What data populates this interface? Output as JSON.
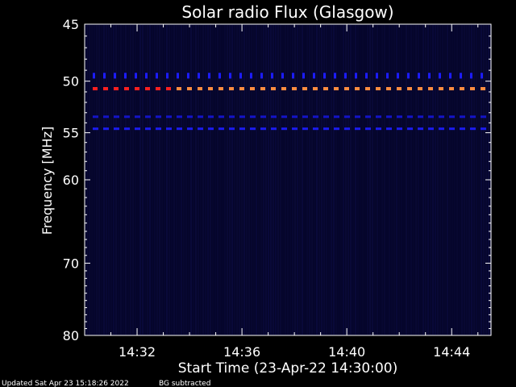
{
  "chart_data": {
    "type": "heatmap",
    "title": "Solar radio Flux (Glasgow)",
    "xlabel": "Start Time (23-Apr-22 14:30:00)",
    "ylabel": "Frequency [MHz]",
    "x_range_minutes": [
      0,
      15.5
    ],
    "x_ticks": [
      {
        "minute": 2,
        "label": "14:32"
      },
      {
        "minute": 6,
        "label": "14:36"
      },
      {
        "minute": 10,
        "label": "14:40"
      },
      {
        "minute": 14,
        "label": "14:44"
      }
    ],
    "y_scale": "log",
    "ylim": [
      45,
      80
    ],
    "y_ticks": [
      45,
      50,
      55,
      60,
      70,
      80
    ],
    "y_tick_labels": [
      "45",
      "50",
      "55",
      "60",
      "70",
      "80"
    ],
    "background_color": "#000000",
    "plot_background_color": "#05052a",
    "bands": [
      {
        "freq": 49.5,
        "color": "#1c1cff",
        "intensity": "weak",
        "pattern": "ticks"
      },
      {
        "freq": 50.7,
        "color": "#ff8c40",
        "intensity": "strong",
        "pattern": "dashed"
      },
      {
        "freq": 53.4,
        "color": "#1414c8",
        "intensity": "weak",
        "pattern": "dashed"
      },
      {
        "freq": 54.6,
        "color": "#1c1cf0",
        "intensity": "moderate",
        "pattern": "dashed"
      }
    ],
    "red_segment": {
      "freq": 50.7,
      "start_minute": 0.3,
      "end_minute": 3.3,
      "color": "#ff2020"
    },
    "grid": false,
    "legend": "none"
  },
  "footer": {
    "updated": "Updated Sat Apr 23 15:18:26 2022",
    "bg_note": "BG subtracted"
  }
}
